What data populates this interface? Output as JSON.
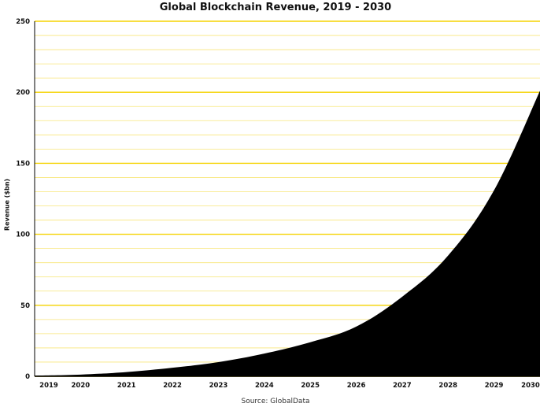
{
  "chart_data": {
    "type": "area",
    "title": "Global Blockchain Revenue, 2019 - 2030",
    "ylabel": "Revenue ($bn)",
    "xlabel": "",
    "source": "Source: GlobalData",
    "categories": [
      "2019",
      "2020",
      "2021",
      "2022",
      "2023",
      "2024",
      "2025",
      "2026",
      "2027",
      "2028",
      "2029",
      "2030"
    ],
    "series": [
      {
        "values": [
          0.5,
          1.2,
          3,
          6,
          10,
          16,
          24,
          35,
          56,
          85,
          131,
          201
        ]
      }
    ],
    "ylim": [
      0,
      250
    ],
    "yticks": [
      0,
      50,
      100,
      150,
      200,
      250
    ],
    "grid": true,
    "colors": {
      "area": "#000000",
      "grid": "#f5d300",
      "minor_grid": "#f8e67a"
    }
  }
}
